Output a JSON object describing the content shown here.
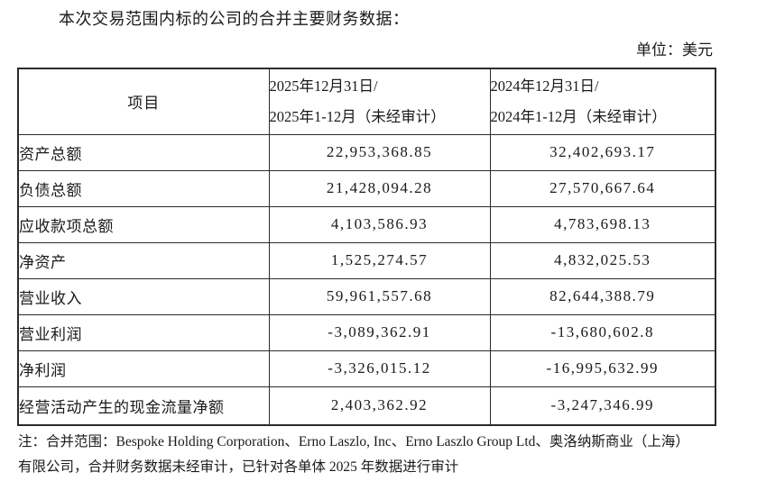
{
  "page": {
    "title": "本次交易范围内标的公司的合并主要财务数据：",
    "unit_label": "单位：美元"
  },
  "table": {
    "header": {
      "item_col": "项目",
      "col_2025": {
        "line1": "2025年12月31日/",
        "line2": "2025年1-12月（未经审计）"
      },
      "col_2024": {
        "line1": "2024年12月31日/",
        "line2": "2024年1-12月（未经审计）"
      }
    },
    "rows": [
      {
        "item": "资产总额",
        "v2025": "22,953,368.85",
        "v2024": "32,402,693.17"
      },
      {
        "item": "负债总额",
        "v2025": "21,428,094.28",
        "v2024": "27,570,667.64"
      },
      {
        "item": "应收款项总额",
        "v2025": "4,103,586.93",
        "v2024": "4,783,698.13"
      },
      {
        "item": "净资产",
        "v2025": "1,525,274.57",
        "v2024": "4,832,025.53"
      },
      {
        "item": "营业收入",
        "v2025": "59,961,557.68",
        "v2024": "82,644,388.79"
      },
      {
        "item": "营业利润",
        "v2025": "-3,089,362.91",
        "v2024": "-13,680,602.8"
      },
      {
        "item": "净利润",
        "v2025": "-3,326,015.12",
        "v2024": "-16,995,632.99"
      },
      {
        "item": "经营活动产生的现金流量净额",
        "v2025": "2,403,362.92",
        "v2024": "-3,247,346.99"
      }
    ]
  },
  "footnote": {
    "line1": "注：合并范围：Bespoke Holding Corporation、Erno Laszlo, Inc、Erno Laszlo Group Ltd、奥洛纳斯商业（上海）",
    "line2": "有限公司，合并财务数据未经审计，已针对各单体 2025 年数据进行审计"
  }
}
